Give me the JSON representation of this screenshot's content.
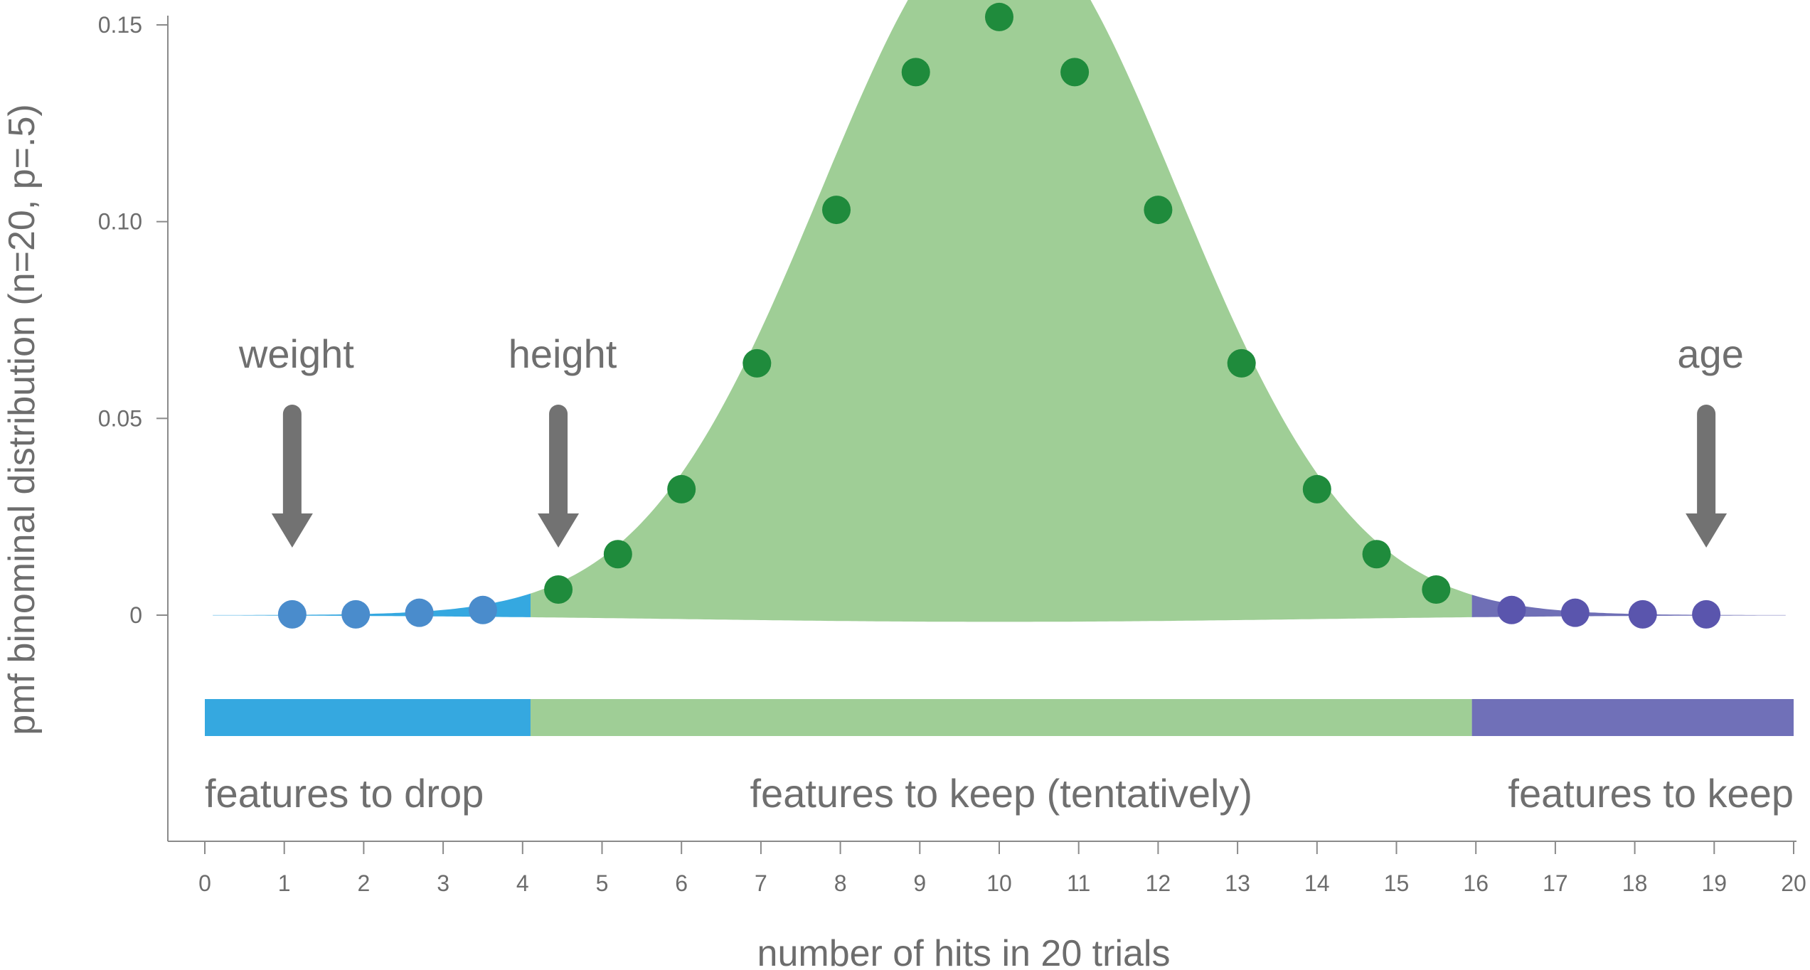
{
  "chart_data": {
    "type": "scatter",
    "xlabel": "number of hits in 20 trials",
    "ylabel": "pmf binominal distribution (n=20, p=.5)",
    "xlim": [
      0,
      20
    ],
    "ylim": [
      -0.058,
      0.155
    ],
    "x_ticks": [
      "0",
      "1",
      "2",
      "3",
      "4",
      "5",
      "6",
      "7",
      "8",
      "9",
      "10",
      "11",
      "12",
      "13",
      "14",
      "15",
      "16",
      "17",
      "18",
      "19",
      "20"
    ],
    "y_ticks": [
      {
        "value": 0,
        "label": "0"
      },
      {
        "value": 0.05,
        "label": "0.05"
      },
      {
        "value": 0.1,
        "label": "0.10"
      },
      {
        "value": 0.15,
        "label": "0.15"
      }
    ],
    "grid": false,
    "points": {
      "x": [
        1.1,
        1.9,
        2.7,
        3.5,
        4.45,
        5.2,
        6.0,
        6.95,
        7.95,
        8.95,
        10.0,
        10.95,
        12.0,
        13.05,
        14.0,
        14.75,
        15.5,
        16.45,
        17.25,
        18.1,
        18.9
      ],
      "y": [
        0.0002,
        0.0002,
        0.0006,
        0.0013,
        0.0065,
        0.0155,
        0.032,
        0.064,
        0.103,
        0.138,
        0.152,
        0.138,
        0.103,
        0.064,
        0.032,
        0.0155,
        0.0065,
        0.0013,
        0.0006,
        0.0002,
        0.0002
      ]
    },
    "regions": [
      {
        "label": "features to drop",
        "from": 0,
        "to": 4.1,
        "color": "#35a8e0",
        "point_color": "#4a8ccc",
        "fill_color": "#35a8e0"
      },
      {
        "label": "features to keep (tentatively)",
        "from": 4.1,
        "to": 15.95,
        "color": "#9fce96",
        "point_color": "#1f8b3c",
        "fill_color": "#9fce96"
      },
      {
        "label": "features to keep",
        "from": 15.95,
        "to": 20,
        "color": "#7070b8",
        "point_color": "#5a55ad",
        "fill_color": "#6f6fb6"
      }
    ],
    "annotations": [
      {
        "text": "weight",
        "x": 1.1
      },
      {
        "text": "height",
        "x": 4.45
      },
      {
        "text": "age",
        "x": 18.9
      }
    ],
    "annotation_arrow_color": "#727272"
  }
}
